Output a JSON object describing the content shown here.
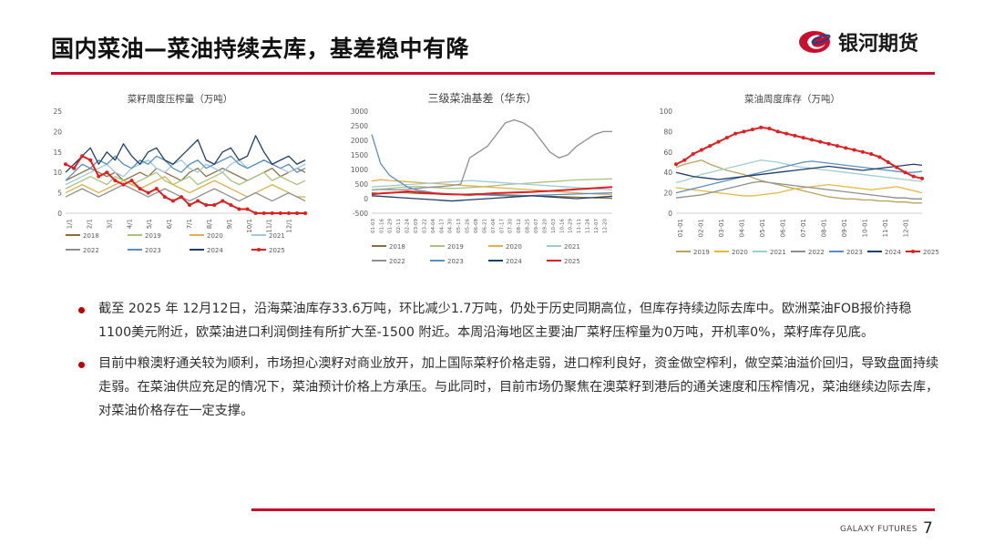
{
  "header": {
    "title": "国内菜油—菜油持续去库，基差稳中有降",
    "brand": "银河期货"
  },
  "colors": {
    "accent": "#c8102e",
    "bullet": "#c00000"
  },
  "bullets": [
    "截至 2025 年 12月12日，沿海菜油库存33.6万吨，环比减少1.7万吨，仍处于历史同期高位，但库存持续边际去库中。欧洲菜油FOB报价持稳1100美元附近，欧菜油进口利润倒挂有所扩大至-1500 附近。本周沿海地区主要油厂菜籽压榨量为0万吨，开机率0%，菜籽库存见底。",
    "目前中粮澳籽通关较为顺利，市场担心澳籽对商业放开，加上国际菜籽价格走弱，进口榨利良好，资金做空榨利，做空菜油溢价回归，导致盘面持续走弱。在菜油供应充足的情况下，菜油预计价格上方承压。与此同时，目前市场仍聚焦在澳菜籽到港后的通关速度和压榨情况，菜油继续边际去库，对菜油价格存在一定支撑。"
  ],
  "footer": {
    "brand": "GALAXY FUTURES",
    "page": "7"
  },
  "chart_data": [
    {
      "type": "line",
      "title": "菜籽周度压榨量（万吨）",
      "ylim": [
        0,
        25
      ],
      "yticks": [
        0,
        5,
        10,
        15,
        20,
        25
      ],
      "x_tick_labels": [
        "1/1",
        "2/1",
        "3/1",
        "4/1",
        "5/1",
        "6/1",
        "7/1",
        "8/1",
        "9/1",
        "10/1",
        "11/1",
        "12/1"
      ],
      "legend": [
        "2018",
        "2019",
        "2020",
        "2021",
        "2022",
        "2023",
        "2024",
        "2025"
      ],
      "series": [
        {
          "name": "2018",
          "color": "#8c6d3f",
          "values": [
            8,
            9,
            10,
            11,
            10,
            9,
            10,
            8,
            9,
            10,
            9,
            11,
            10,
            9,
            8,
            10,
            11,
            9,
            10,
            11,
            10,
            9,
            8,
            9,
            10,
            11,
            9,
            10,
            11,
            10
          ]
        },
        {
          "name": "2019",
          "color": "#a9c47f",
          "values": [
            6,
            7,
            8,
            9,
            8,
            7,
            9,
            8,
            7,
            8,
            9,
            10,
            8,
            7,
            8,
            9,
            7,
            8,
            9,
            10,
            8,
            7,
            8,
            9,
            10,
            8,
            9,
            8,
            7,
            8
          ]
        },
        {
          "name": "2020",
          "color": "#e3b04b",
          "values": [
            5,
            6,
            7,
            6,
            5,
            6,
            7,
            8,
            7,
            6,
            7,
            8,
            9,
            7,
            6,
            5,
            6,
            7,
            8,
            7,
            6,
            5,
            4,
            5,
            6,
            7,
            6,
            5,
            4,
            4
          ]
        },
        {
          "name": "2021",
          "color": "#9fc9d6",
          "values": [
            7,
            8,
            9,
            10,
            11,
            12,
            10,
            9,
            11,
            12,
            13,
            11,
            10,
            12,
            13,
            11,
            10,
            12,
            11,
            10,
            12,
            13,
            11,
            12,
            13,
            12,
            11,
            10,
            11,
            12
          ]
        },
        {
          "name": "2022",
          "color": "#8e8e8e",
          "values": [
            4,
            5,
            6,
            5,
            4,
            5,
            6,
            7,
            6,
            5,
            4,
            5,
            6,
            5,
            4,
            3,
            4,
            5,
            6,
            5,
            4,
            3,
            4,
            5,
            4,
            3,
            4,
            5,
            4,
            3
          ]
        },
        {
          "name": "2023",
          "color": "#5b8fc2",
          "values": [
            8,
            10,
            12,
            11,
            13,
            12,
            14,
            12,
            11,
            13,
            12,
            14,
            13,
            11,
            10,
            12,
            13,
            11,
            12,
            13,
            14,
            12,
            11,
            12,
            13,
            12,
            11,
            12,
            10,
            11
          ]
        },
        {
          "name": "2024",
          "color": "#1f3f6b",
          "values": [
            10,
            12,
            14,
            16,
            12,
            15,
            13,
            17,
            14,
            12,
            15,
            16,
            13,
            12,
            14,
            16,
            18,
            13,
            12,
            15,
            16,
            13,
            14,
            19,
            15,
            12,
            13,
            14,
            12,
            13
          ]
        },
        {
          "name": "2025",
          "color": "#e02020",
          "values": [
            12,
            11,
            14,
            13,
            9,
            10,
            8,
            7,
            8,
            6,
            5,
            6,
            4,
            3,
            4,
            2,
            3,
            2,
            2,
            3,
            2,
            1,
            1,
            0,
            0,
            0,
            0,
            0,
            0,
            0
          ]
        }
      ]
    },
    {
      "type": "line",
      "title": "三级菜油基差（华东）",
      "ylim": [
        -500,
        3000
      ],
      "yticks": [
        -500,
        0,
        500,
        1000,
        1500,
        2000,
        2500,
        3000
      ],
      "x_tick_labels": [
        "01-03",
        "01-16",
        "01-29",
        "02-11",
        "02-24",
        "03-09",
        "03-22",
        "04-04",
        "04-17",
        "04-30",
        "05-13",
        "05-26",
        "06-08",
        "06-21",
        "07-04",
        "07-17",
        "07-30",
        "08-12",
        "08-25",
        "09-07",
        "09-20",
        "10-03",
        "10-16",
        "10-29",
        "11-11",
        "11-24",
        "12-07",
        "12-20"
      ],
      "legend": [
        "2018",
        "2019",
        "2020",
        "2021",
        "2022",
        "2023",
        "2024",
        "2025"
      ],
      "series": [
        {
          "name": "2018",
          "color": "#8c6d3f",
          "values": [
            200,
            180,
            190,
            210,
            200,
            180,
            170,
            160,
            150,
            140,
            150,
            160,
            170,
            150,
            140,
            130,
            120,
            110,
            100,
            90,
            80,
            70,
            60,
            50,
            40,
            30,
            20,
            10
          ]
        },
        {
          "name": "2019",
          "color": "#a9c47f",
          "values": [
            300,
            320,
            350,
            380,
            400,
            420,
            400,
            380,
            360,
            350,
            360,
            380,
            400,
            420,
            450,
            480,
            500,
            520,
            540,
            560,
            580,
            600,
            620,
            640,
            650,
            660,
            670,
            680
          ]
        },
        {
          "name": "2020",
          "color": "#e3b04b",
          "values": [
            600,
            650,
            620,
            600,
            580,
            560,
            540,
            520,
            500,
            480,
            460,
            440,
            420,
            400,
            380,
            360,
            340,
            320,
            300,
            280,
            260,
            240,
            220,
            200,
            180,
            160,
            150,
            140
          ]
        },
        {
          "name": "2021",
          "color": "#9fc9d6",
          "values": [
            400,
            420,
            440,
            460,
            480,
            500,
            520,
            540,
            560,
            580,
            600,
            620,
            600,
            580,
            560,
            540,
            520,
            500,
            480,
            460,
            440,
            420,
            400,
            380,
            360,
            340,
            320,
            300
          ]
        },
        {
          "name": "2022",
          "color": "#8e8e8e",
          "values": [
            300,
            320,
            310,
            300,
            320,
            350,
            380,
            400,
            420,
            450,
            500,
            1400,
            1600,
            1800,
            2200,
            2600,
            2700,
            2600,
            2400,
            2000,
            1600,
            1400,
            1500,
            1800,
            2000,
            2200,
            2300,
            2300
          ]
        },
        {
          "name": "2023",
          "color": "#5b8fc2",
          "values": [
            2200,
            1200,
            800,
            600,
            400,
            300,
            250,
            200,
            180,
            160,
            150,
            140,
            130,
            120,
            110,
            100,
            90,
            100,
            110,
            120,
            130,
            140,
            150,
            160,
            170,
            180,
            190,
            200
          ]
        },
        {
          "name": "2024",
          "color": "#1f3f6b",
          "values": [
            100,
            80,
            60,
            40,
            20,
            0,
            -20,
            -40,
            -60,
            -80,
            -60,
            -40,
            -20,
            0,
            20,
            40,
            60,
            80,
            100,
            80,
            60,
            40,
            20,
            0,
            20,
            40,
            60,
            80
          ]
        },
        {
          "name": "2025",
          "color": "#e02020",
          "values": [
            150,
            180,
            200,
            220,
            250,
            230,
            200,
            180,
            160,
            150,
            140,
            130,
            150,
            170,
            190,
            200,
            210,
            220,
            230,
            250,
            260,
            280,
            300,
            320,
            340,
            360,
            380,
            400
          ]
        }
      ]
    },
    {
      "type": "line",
      "title": "菜油周度库存（万吨）",
      "ylim": [
        0,
        100
      ],
      "yticks": [
        0,
        20,
        40,
        60,
        80,
        100
      ],
      "x_tick_labels": [
        "01-01",
        "02-01",
        "03-01",
        "04-01",
        "05-01",
        "06-01",
        "07-01",
        "08-01",
        "09-01",
        "10-01",
        "11-01",
        "12-01"
      ],
      "legend": [
        "2019",
        "2020",
        "2021",
        "2022",
        "2023",
        "2024",
        "2025"
      ],
      "series": [
        {
          "name": "2019",
          "color": "#bca45a",
          "values": [
            45,
            48,
            50,
            52,
            48,
            45,
            42,
            40,
            38,
            35,
            32,
            30,
            28,
            26,
            24,
            22,
            20,
            18,
            16,
            15,
            14,
            14,
            13,
            13,
            12,
            12,
            11,
            11,
            10,
            10
          ]
        },
        {
          "name": "2020",
          "color": "#e8b83a",
          "values": [
            25,
            24,
            23,
            22,
            21,
            20,
            19,
            18,
            17,
            17,
            18,
            19,
            20,
            22,
            24,
            25,
            26,
            27,
            28,
            27,
            26,
            25,
            24,
            23,
            24,
            25,
            26,
            24,
            22,
            20
          ]
        },
        {
          "name": "2021",
          "color": "#9fd0c9",
          "values": [
            30,
            32,
            35,
            38,
            40,
            42,
            44,
            46,
            48,
            50,
            52,
            51,
            50,
            48,
            46,
            45,
            44,
            43,
            42,
            41,
            40,
            39,
            38,
            37,
            36,
            35,
            34,
            33,
            32,
            31
          ]
        },
        {
          "name": "2022",
          "color": "#8e8e8e",
          "values": [
            15,
            16,
            17,
            18,
            20,
            22,
            24,
            26,
            28,
            30,
            31,
            30,
            29,
            28,
            27,
            26,
            25,
            24,
            23,
            22,
            21,
            20,
            19,
            18,
            17,
            16,
            15,
            15,
            14,
            14
          ]
        },
        {
          "name": "2023",
          "color": "#5b8fc2",
          "values": [
            20,
            22,
            24,
            26,
            28,
            30,
            32,
            34,
            36,
            38,
            40,
            42,
            44,
            46,
            48,
            50,
            51,
            50,
            49,
            48,
            47,
            46,
            45,
            44,
            43,
            42,
            41,
            40,
            40,
            41
          ]
        },
        {
          "name": "2024",
          "color": "#1f3f6b",
          "values": [
            40,
            38,
            36,
            35,
            34,
            33,
            34,
            35,
            36,
            37,
            38,
            39,
            40,
            41,
            42,
            43,
            44,
            45,
            46,
            45,
            44,
            43,
            42,
            43,
            44,
            45,
            46,
            47,
            48,
            47
          ]
        },
        {
          "name": "2025",
          "color": "#e02020",
          "values": [
            48,
            52,
            58,
            62,
            66,
            70,
            74,
            78,
            80,
            82,
            84,
            83,
            80,
            78,
            76,
            74,
            72,
            70,
            68,
            66,
            64,
            62,
            60,
            58,
            55,
            50,
            45,
            40,
            36,
            34
          ]
        }
      ]
    }
  ]
}
